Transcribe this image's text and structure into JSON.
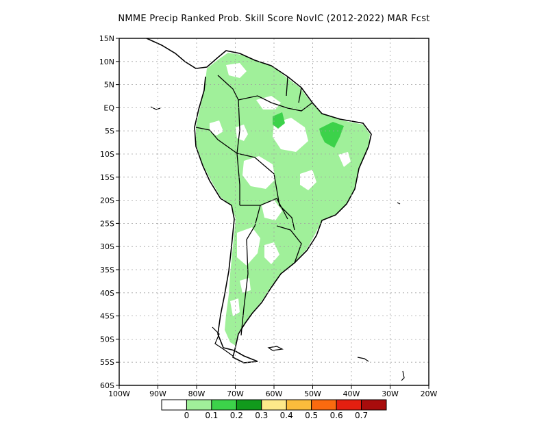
{
  "title": "NMME Precip Ranked Prob. Skill Score NovIC (2012-2022) MAR Fcst",
  "map": {
    "lon_range": [
      -100,
      -20
    ],
    "lat_range": [
      -60,
      15
    ],
    "lat_ticks": [
      {
        "value": 15,
        "label": "15N"
      },
      {
        "value": 10,
        "label": "10N"
      },
      {
        "value": 5,
        "label": "5N"
      },
      {
        "value": 0,
        "label": "EQ"
      },
      {
        "value": -5,
        "label": "5S"
      },
      {
        "value": -10,
        "label": "10S"
      },
      {
        "value": -15,
        "label": "15S"
      },
      {
        "value": -20,
        "label": "20S"
      },
      {
        "value": -25,
        "label": "25S"
      },
      {
        "value": -30,
        "label": "30S"
      },
      {
        "value": -35,
        "label": "35S"
      },
      {
        "value": -40,
        "label": "40S"
      },
      {
        "value": -45,
        "label": "45S"
      },
      {
        "value": -50,
        "label": "50S"
      },
      {
        "value": -55,
        "label": "55S"
      },
      {
        "value": -60,
        "label": "60S"
      }
    ],
    "lon_ticks": [
      {
        "value": -100,
        "label": "100W"
      },
      {
        "value": -90,
        "label": "90W"
      },
      {
        "value": -80,
        "label": "80W"
      },
      {
        "value": -70,
        "label": "70W"
      },
      {
        "value": -60,
        "label": "60W"
      },
      {
        "value": -50,
        "label": "50W"
      },
      {
        "value": -40,
        "label": "40W"
      },
      {
        "value": -30,
        "label": "30W"
      },
      {
        "value": -20,
        "label": "20W"
      }
    ],
    "grid": true
  },
  "colorbar": {
    "colors": [
      "#ffffff",
      "#a0f09a",
      "#3cd24a",
      "#119a1c",
      "#fde98a",
      "#fbbc3c",
      "#fa6a0f",
      "#e41f10",
      "#a80c0c"
    ],
    "labels": [
      "0",
      "0.1",
      "0.2",
      "0.3",
      "0.4",
      "0.5",
      "0.6",
      "0.7"
    ]
  },
  "colors": {
    "land_low_skill": "#a0f09a",
    "land_mid_skill": "#3cd24a",
    "coastline": "#000000",
    "grid": "#a0a0a0"
  }
}
